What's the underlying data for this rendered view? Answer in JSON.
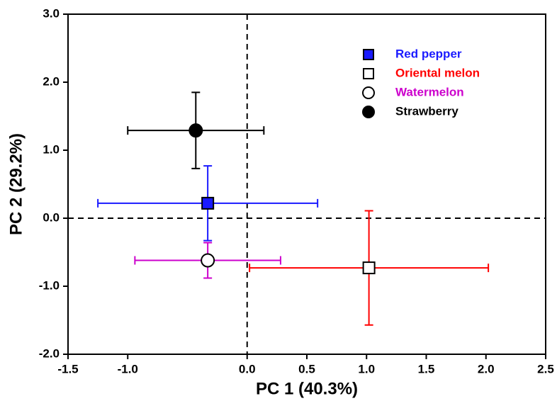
{
  "chart_data": {
    "type": "scatter",
    "x_label": "PC 1 (40.3%)",
    "y_label": "PC 2 (29.2%)",
    "xlim": [
      -1.5,
      2.5
    ],
    "ylim": [
      -2,
      3
    ],
    "xticks": [
      -1.5,
      {
        "value": -1,
        "label": "-1.0"
      },
      {
        "value": 0,
        "label": "0.0"
      },
      0.5,
      {
        "value": 1,
        "label": "1.0"
      },
      1.5,
      {
        "value": 2,
        "label": "2.0"
      },
      2.5
    ],
    "yticks": [
      {
        "value": -2,
        "label": "-2.0"
      },
      {
        "value": -1,
        "label": "-1.0"
      },
      {
        "value": 0,
        "label": "0.0"
      },
      {
        "value": 1,
        "label": "1.0"
      },
      {
        "value": 2,
        "label": "2.0"
      },
      {
        "value": 3,
        "label": "3.0"
      }
    ],
    "zero_lines": true,
    "legend": "upper right",
    "series": [
      {
        "name": "Red pepper",
        "color": "#1a1aff",
        "marker": "square",
        "fill": "#1a1aff",
        "x": [
          -0.33
        ],
        "values": [
          0.22
        ],
        "x_error": [
          0.92
        ],
        "y_error": [
          0.55
        ]
      },
      {
        "name": "Oriental melon",
        "color": "#ff0000",
        "marker": "square",
        "fill": "#ffffff",
        "x": [
          1.02
        ],
        "values": [
          -0.73
        ],
        "x_error": [
          1.0
        ],
        "y_error": [
          0.84
        ]
      },
      {
        "name": "Watermelon",
        "color": "#cc00cc",
        "marker": "circle",
        "fill": "#ffffff",
        "x": [
          -0.33
        ],
        "values": [
          -0.62
        ],
        "x_error": [
          0.61
        ],
        "y_error": [
          0.26
        ]
      },
      {
        "name": "Strawberry",
        "color": "#000000",
        "marker": "circle",
        "fill": "#000000",
        "x": [
          -0.43
        ],
        "values": [
          1.29
        ],
        "x_error": [
          0.57
        ],
        "y_error": [
          0.56
        ]
      }
    ]
  }
}
